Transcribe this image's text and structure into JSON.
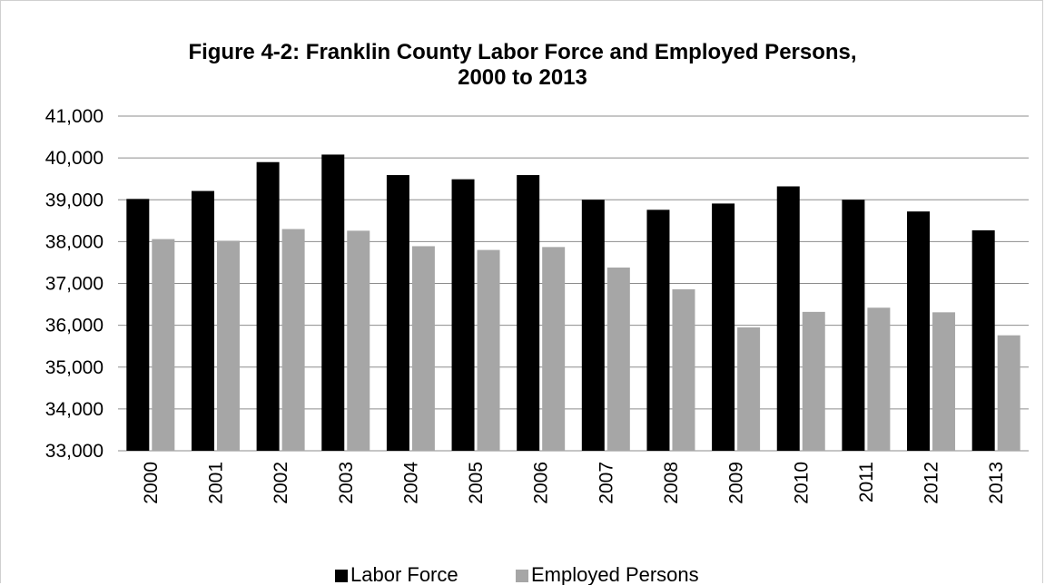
{
  "chart_data": {
    "type": "bar",
    "title_line1": "Figure 4-2: Franklin County Labor Force and Employed Persons,",
    "title_line2": "2000 to 2013",
    "categories": [
      "2000",
      "2001",
      "2002",
      "2003",
      "2004",
      "2005",
      "2006",
      "2007",
      "2008",
      "2009",
      "2010",
      "2011",
      "2012",
      "2013"
    ],
    "series": [
      {
        "name": "Labor Force",
        "color": "#000000",
        "values": [
          39020,
          39210,
          39900,
          40080,
          39590,
          39490,
          39590,
          39000,
          38760,
          38910,
          39320,
          39000,
          38720,
          38270
        ]
      },
      {
        "name": "Employed Persons",
        "color": "#a6a6a6",
        "values": [
          38060,
          38020,
          38300,
          38260,
          37890,
          37800,
          37870,
          37380,
          36860,
          35950,
          36320,
          36420,
          36310,
          35760
        ]
      }
    ],
    "ylim": [
      33000,
      41000
    ],
    "yticks": [
      "33,000",
      "34,000",
      "35,000",
      "36,000",
      "37,000",
      "38,000",
      "39,000",
      "40,000",
      "41,000"
    ],
    "grid": true,
    "legend": "bottom"
  }
}
